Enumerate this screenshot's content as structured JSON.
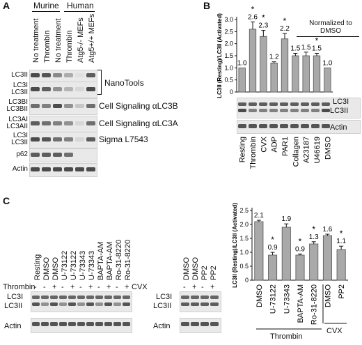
{
  "panel_a": {
    "letter": "A",
    "group_murine": "Murine",
    "group_human": "Human",
    "lanes": [
      "No treatment",
      "Thrombin",
      "No treatment",
      "Thrombin",
      "Atg5-/- MEFs",
      "Atg5+/+ MEFs"
    ],
    "blots": [
      {
        "labels": [
          "LC3II"
        ],
        "right": ""
      },
      {
        "labels": [
          "LC3I",
          "LC3II"
        ],
        "right": "NanoTools"
      },
      {
        "labels": [
          "LC3BI",
          "LC3BII"
        ],
        "right": "Cell Signaling αLC3B"
      },
      {
        "labels": [
          "LC3AI",
          "LC3AII"
        ],
        "right": "Cell Signaling αLC3A"
      },
      {
        "labels": [
          "LC3I",
          "LC3II"
        ],
        "right": "Sigma L7543"
      },
      {
        "labels": [
          "p62"
        ],
        "right": ""
      },
      {
        "labels": [
          "Actin"
        ],
        "right": ""
      }
    ]
  },
  "panel_b": {
    "letter": "B",
    "note": "Normalized to DMSO",
    "blot_labels": {
      "lc3i": "LC3I",
      "lc3ii": "LC3II",
      "actin": "Actin"
    }
  },
  "panel_c": {
    "letter": "C",
    "left_lanes": [
      "Resting",
      "DMSO",
      "DMSO",
      "U-73122",
      "U-73122",
      "U-73343",
      "U-73343",
      "BAPTA-AM",
      "BAPTA-AM",
      "Ro-31-8220",
      "Ro-31-8220"
    ],
    "left_signs": [
      "-",
      "-",
      "+",
      "-",
      "+",
      "-",
      "+",
      "-",
      "+",
      "-",
      "+"
    ],
    "right_lanes": [
      "DMSO",
      "DMSO",
      "PP2",
      "PP2"
    ],
    "right_signs": [
      "-",
      "+",
      "-",
      "+"
    ],
    "thrombin_label": "Thrombin",
    "cvx_label": "CVX",
    "blot_labels": {
      "lc3i": "LC3I",
      "lc3ii": "LC3II",
      "actin": "Actin"
    },
    "group_thrombin": "Thrombin",
    "group_cvx": "CVX"
  },
  "chart_data": [
    {
      "type": "bar",
      "panel": "B",
      "ylabel": "LC3II (Resting)/LC3II (Activated)",
      "categories": [
        "Resting",
        "Thrombin",
        "CVX",
        "ADP",
        "PAR1",
        "Collagen",
        "A23187",
        "U46619",
        "DMSO"
      ],
      "values": [
        1.0,
        2.6,
        2.3,
        1.2,
        2.2,
        1.5,
        1.5,
        1.5,
        1.0
      ],
      "value_labels": [
        "1.0",
        "2.6",
        "2.3",
        "1.2",
        "2.2",
        "1.5",
        "1.5",
        "1.5",
        "1.0"
      ],
      "errors": [
        0.0,
        0.3,
        0.25,
        0.05,
        0.22,
        0.1,
        0.15,
        0.1,
        0.0
      ],
      "significant": [
        false,
        true,
        true,
        false,
        true,
        false,
        false,
        true,
        false
      ],
      "ylim": [
        0,
        3.0
      ],
      "yticks": [
        0,
        0.5,
        1.0,
        1.5,
        2.0,
        2.5,
        3.0
      ],
      "ytick_labels": [
        "0",
        "0.5",
        "1.0",
        "1.5",
        "2.0",
        "2.5",
        "3.0"
      ]
    },
    {
      "type": "bar",
      "panel": "C",
      "ylabel": "LC3II (Resting)/LC3II (Activated)",
      "categories": [
        "DMSO",
        "U-73122",
        "U-73343",
        "BAPTA-AM",
        "Ro-31-8220",
        "DMSO",
        "PP2"
      ],
      "values": [
        2.1,
        0.9,
        1.9,
        0.9,
        1.3,
        1.6,
        1.1
      ],
      "value_labels": [
        "2.1",
        "0.9",
        "1.9",
        "0.9",
        "1.3",
        "1.6",
        "1.1"
      ],
      "errors": [
        0.05,
        0.1,
        0.12,
        0.04,
        0.08,
        0.05,
        0.12
      ],
      "significant": [
        false,
        true,
        false,
        true,
        true,
        false,
        true
      ],
      "ylim": [
        0,
        2.5
      ],
      "yticks": [
        0,
        0.5,
        1.0,
        1.5,
        2.0,
        2.5
      ],
      "ytick_labels": [
        "0",
        "0.5",
        "1.0",
        "1.5",
        "2.0",
        "2.5"
      ]
    }
  ]
}
